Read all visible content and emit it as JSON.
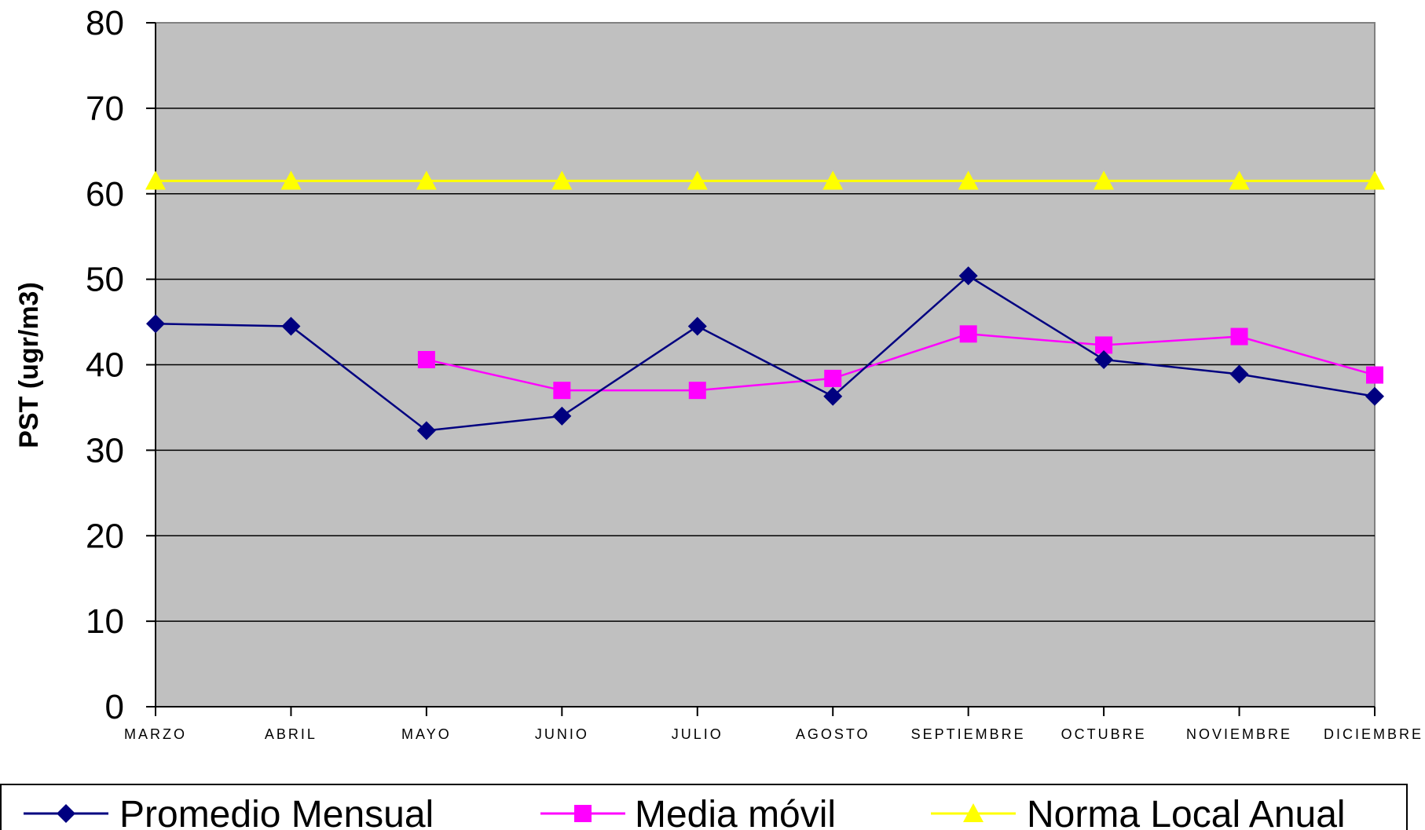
{
  "chart_data": {
    "type": "line",
    "title": "",
    "xlabel": "",
    "ylabel": "PST (ugr/m3)",
    "ylim": [
      0,
      80
    ],
    "yticks": [
      0,
      10,
      20,
      30,
      40,
      50,
      60,
      70,
      80
    ],
    "grid": true,
    "legend_position": "bottom",
    "categories": [
      "MARZO",
      "ABRIL",
      "MAYO",
      "JUNIO",
      "JULIO",
      "AGOSTO",
      "SEPTIEMBRE",
      "OCTUBRE",
      "NOVIEMBRE",
      "DICIEMBRE"
    ],
    "series": [
      {
        "name": "Promedio Mensual",
        "color": "#000080",
        "marker": "diamond",
        "values": [
          44.8,
          44.5,
          32.3,
          34.0,
          44.5,
          36.3,
          50.4,
          40.6,
          38.9,
          36.3
        ]
      },
      {
        "name": "Media móvil",
        "color": "#ff00ff",
        "marker": "square",
        "values": [
          null,
          null,
          40.6,
          37.0,
          37.0,
          38.4,
          43.6,
          42.3,
          43.3,
          38.8
        ]
      },
      {
        "name": "Norma Local Anual",
        "color": "#ffff00",
        "marker": "triangle",
        "values": [
          61.5,
          61.5,
          61.5,
          61.5,
          61.5,
          61.5,
          61.5,
          61.5,
          61.5,
          61.5
        ]
      }
    ],
    "plot_background": "#c0c0c0"
  }
}
